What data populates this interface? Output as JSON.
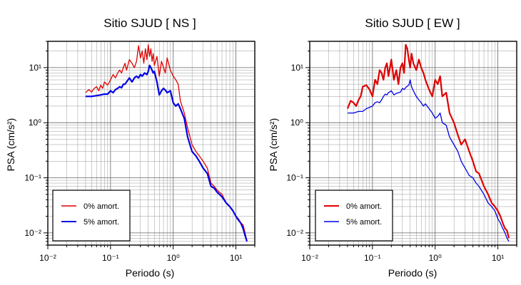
{
  "chart_data": [
    {
      "type": "line",
      "title": "Sitio SJUD [ NS ]",
      "xlabel": "Periodo (s)",
      "ylabel": "PSA (cm/s²)",
      "xscale": "log",
      "yscale": "log",
      "xlim": [
        0.01,
        20
      ],
      "ylim": [
        0.006,
        30
      ],
      "grid": true,
      "legend_position": "bottom-left",
      "x_ticks": [
        "10⁻²",
        "10⁻¹",
        "10⁰",
        "10¹"
      ],
      "y_ticks": [
        "10⁻²",
        "10⁻¹",
        "10⁰",
        "10¹"
      ],
      "series": [
        {
          "name": "0% amort.",
          "color": "#e00000",
          "x": [
            0.04,
            0.045,
            0.05,
            0.055,
            0.06,
            0.065,
            0.07,
            0.075,
            0.08,
            0.09,
            0.1,
            0.11,
            0.12,
            0.13,
            0.14,
            0.15,
            0.16,
            0.17,
            0.18,
            0.2,
            0.22,
            0.24,
            0.26,
            0.28,
            0.3,
            0.32,
            0.34,
            0.36,
            0.38,
            0.4,
            0.42,
            0.44,
            0.46,
            0.48,
            0.5,
            0.55,
            0.6,
            0.65,
            0.7,
            0.75,
            0.8,
            0.9,
            1.0,
            1.1,
            1.2,
            1.3,
            1.5,
            1.7,
            2.0,
            2.3,
            2.6,
            3.0,
            3.5,
            4.0,
            4.5,
            5.0,
            6.0,
            7.0,
            8.0,
            9.0,
            10.0,
            11.0,
            12.0,
            13.0,
            14.0,
            15.0
          ],
          "values": [
            3.5,
            4.0,
            3.6,
            4.2,
            4.5,
            3.8,
            4.8,
            4.2,
            5.5,
            4.8,
            6.0,
            7.5,
            6.5,
            8.0,
            9.0,
            8.0,
            10.0,
            12.0,
            9.0,
            14.0,
            12.0,
            10.0,
            13.0,
            25.0,
            15.0,
            20.0,
            12.0,
            22.0,
            14.0,
            26.0,
            16.0,
            22.0,
            13.0,
            18.0,
            11.0,
            16.0,
            7.0,
            13.0,
            10.0,
            8.0,
            15.0,
            9.0,
            7.0,
            6.0,
            5.0,
            2.5,
            1.5,
            0.8,
            0.4,
            0.3,
            0.25,
            0.2,
            0.15,
            0.08,
            0.07,
            0.06,
            0.05,
            0.035,
            0.03,
            0.025,
            0.02,
            0.018,
            0.015,
            0.014,
            0.01,
            0.007
          ]
        },
        {
          "name": "5% amort.",
          "color": "#0000e6",
          "x": [
            0.04,
            0.05,
            0.06,
            0.07,
            0.08,
            0.09,
            0.1,
            0.11,
            0.12,
            0.13,
            0.14,
            0.15,
            0.16,
            0.17,
            0.18,
            0.2,
            0.22,
            0.24,
            0.26,
            0.28,
            0.3,
            0.32,
            0.35,
            0.38,
            0.4,
            0.42,
            0.45,
            0.48,
            0.5,
            0.55,
            0.6,
            0.65,
            0.7,
            0.75,
            0.8,
            0.9,
            1.0,
            1.1,
            1.2,
            1.3,
            1.5,
            1.7,
            2.0,
            2.3,
            2.6,
            3.0,
            3.5,
            4.0,
            4.5,
            5.0,
            6.0,
            7.0,
            8.0,
            9.0,
            10.0,
            11.0,
            12.0,
            13.0,
            14.0,
            15.0
          ],
          "values": [
            3.0,
            3.0,
            3.1,
            3.2,
            3.3,
            3.3,
            3.8,
            3.5,
            4.0,
            4.2,
            4.5,
            4.3,
            5.0,
            5.0,
            5.5,
            6.5,
            5.5,
            6.5,
            7.0,
            6.5,
            7.5,
            7.0,
            8.0,
            7.5,
            8.5,
            11.0,
            9.5,
            8.0,
            8.5,
            5.5,
            3.2,
            3.8,
            4.2,
            3.9,
            3.5,
            3.8,
            2.3,
            2.0,
            2.2,
            1.8,
            1.2,
            0.55,
            0.3,
            0.25,
            0.2,
            0.15,
            0.12,
            0.07,
            0.065,
            0.055,
            0.045,
            0.035,
            0.03,
            0.025,
            0.02,
            0.017,
            0.015,
            0.012,
            0.009,
            0.007
          ]
        }
      ]
    },
    {
      "type": "line",
      "title": "Sitio SJUD [ EW ]",
      "xlabel": "Periodo (s)",
      "ylabel": "PSA (cm/s²)",
      "xscale": "log",
      "yscale": "log",
      "xlim": [
        0.01,
        20
      ],
      "ylim": [
        0.006,
        30
      ],
      "grid": true,
      "legend_position": "bottom-left",
      "x_ticks": [
        "10⁻²",
        "10⁻¹",
        "10⁰",
        "10¹"
      ],
      "y_ticks": [
        "10⁻²",
        "10⁻¹",
        "10⁰",
        "10¹"
      ],
      "series": [
        {
          "name": "0% amort.",
          "color": "#e00000",
          "x": [
            0.04,
            0.045,
            0.05,
            0.055,
            0.06,
            0.065,
            0.07,
            0.08,
            0.09,
            0.1,
            0.11,
            0.12,
            0.13,
            0.14,
            0.15,
            0.16,
            0.17,
            0.18,
            0.2,
            0.22,
            0.24,
            0.26,
            0.28,
            0.3,
            0.32,
            0.34,
            0.36,
            0.38,
            0.4,
            0.42,
            0.45,
            0.5,
            0.55,
            0.6,
            0.65,
            0.7,
            0.8,
            0.9,
            1.0,
            1.1,
            1.2,
            1.3,
            1.5,
            1.7,
            2.0,
            2.3,
            2.6,
            3.0,
            3.5,
            4.0,
            4.5,
            5.0,
            6.0,
            7.0,
            8.0,
            9.0,
            10.0,
            11.0,
            12.0,
            13.0,
            14.0,
            15.0
          ],
          "values": [
            1.8,
            2.5,
            2.3,
            2.0,
            2.6,
            3.0,
            4.5,
            4.8,
            4.0,
            3.0,
            6.0,
            5.0,
            9.0,
            8.0,
            6.0,
            10.0,
            12.0,
            7.0,
            14.0,
            6.0,
            9.0,
            5.0,
            10.0,
            12.0,
            8.0,
            26.0,
            22.0,
            14.0,
            10.0,
            18.0,
            12.0,
            9.0,
            14.0,
            10.0,
            8.0,
            6.0,
            4.0,
            3.0,
            6.0,
            5.0,
            7.0,
            3.0,
            3.5,
            1.5,
            1.0,
            0.6,
            0.4,
            0.5,
            0.3,
            0.2,
            0.13,
            0.12,
            0.07,
            0.05,
            0.035,
            0.03,
            0.025,
            0.02,
            0.015,
            0.012,
            0.011,
            0.008
          ]
        },
        {
          "name": "5% amort.",
          "color": "#0000e6",
          "x": [
            0.04,
            0.05,
            0.06,
            0.07,
            0.08,
            0.09,
            0.1,
            0.11,
            0.12,
            0.13,
            0.14,
            0.15,
            0.16,
            0.17,
            0.18,
            0.2,
            0.22,
            0.24,
            0.26,
            0.28,
            0.3,
            0.32,
            0.35,
            0.38,
            0.4,
            0.42,
            0.45,
            0.5,
            0.55,
            0.6,
            0.65,
            0.7,
            0.8,
            0.9,
            1.0,
            1.1,
            1.2,
            1.3,
            1.5,
            1.7,
            2.0,
            2.3,
            2.6,
            3.0,
            3.5,
            4.0,
            4.5,
            5.0,
            6.0,
            7.0,
            8.0,
            9.0,
            10.0,
            11.0,
            12.0,
            13.0,
            14.0,
            15.0
          ],
          "values": [
            1.5,
            1.5,
            1.6,
            1.6,
            1.8,
            1.9,
            2.0,
            2.3,
            2.4,
            2.3,
            2.6,
            3.0,
            3.3,
            3.2,
            3.5,
            3.8,
            3.2,
            3.4,
            3.5,
            3.6,
            4.2,
            4.0,
            4.5,
            4.8,
            6.0,
            4.5,
            3.8,
            3.0,
            2.6,
            2.3,
            2.0,
            2.2,
            1.8,
            1.5,
            1.2,
            1.3,
            1.5,
            1.0,
            0.9,
            0.55,
            0.4,
            0.3,
            0.2,
            0.15,
            0.11,
            0.1,
            0.08,
            0.07,
            0.05,
            0.035,
            0.03,
            0.025,
            0.018,
            0.015,
            0.012,
            0.01,
            0.008,
            0.007
          ]
        }
      ]
    }
  ]
}
